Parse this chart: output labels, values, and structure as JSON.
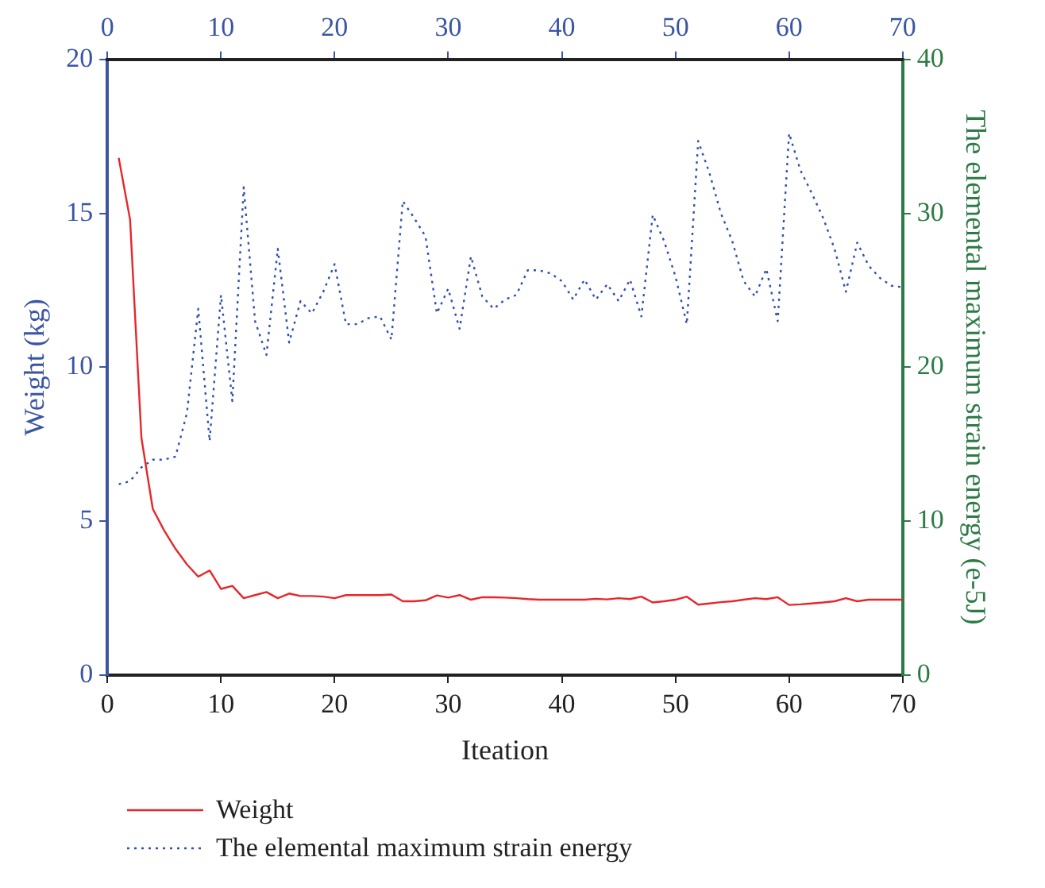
{
  "chart_data": {
    "type": "line",
    "xlabel": "Iteation",
    "ylabel": "Weight (kg)",
    "y2label": "The elemental maximum strain energy (e-5J)",
    "x": [
      1,
      2,
      3,
      4,
      5,
      6,
      7,
      8,
      9,
      10,
      11,
      12,
      13,
      14,
      15,
      16,
      17,
      18,
      19,
      20,
      21,
      22,
      23,
      24,
      25,
      26,
      27,
      28,
      29,
      30,
      31,
      32,
      33,
      34,
      35,
      36,
      37,
      38,
      39,
      40,
      41,
      42,
      43,
      44,
      45,
      46,
      47,
      48,
      49,
      50,
      51,
      52,
      53,
      54,
      55,
      56,
      57,
      58,
      59,
      60,
      61,
      62,
      63,
      64,
      65,
      66,
      67,
      68,
      69,
      70
    ],
    "series": [
      {
        "name": "Weight",
        "color": "#e8262a",
        "line_style": "solid",
        "values": [
          16.8,
          14.8,
          7.7,
          5.4,
          4.7,
          4.1,
          3.6,
          3.2,
          3.4,
          2.8,
          2.9,
          2.5,
          2.6,
          2.7,
          2.5,
          2.65,
          2.57,
          2.57,
          2.55,
          2.5,
          2.6,
          2.6,
          2.6,
          2.6,
          2.62,
          2.4,
          2.4,
          2.43,
          2.59,
          2.52,
          2.6,
          2.45,
          2.53,
          2.53,
          2.52,
          2.5,
          2.47,
          2.45,
          2.45,
          2.45,
          2.45,
          2.45,
          2.48,
          2.46,
          2.5,
          2.47,
          2.55,
          2.36,
          2.4,
          2.45,
          2.55,
          2.29,
          2.33,
          2.37,
          2.4,
          2.45,
          2.5,
          2.47,
          2.53,
          2.28,
          2.3,
          2.33,
          2.36,
          2.4,
          2.5,
          2.4,
          2.45,
          2.45,
          2.45,
          2.45
        ]
      },
      {
        "name": "The elemental maximum strain energy",
        "color": "#3050b0",
        "line_style": "dotted",
        "axis": "y2",
        "values": [
          12.4,
          12.6,
          13.5,
          14,
          14,
          14.2,
          17,
          23.8,
          15.2,
          24.7,
          17.8,
          31.7,
          23,
          20.8,
          27.7,
          21.6,
          24.3,
          23.5,
          24.9,
          26.7,
          22.8,
          22.8,
          23.2,
          23.3,
          21.8,
          30.8,
          29.7,
          28.5,
          23.5,
          25.1,
          22.5,
          27.2,
          24.6,
          23.8,
          24.4,
          24.7,
          26.3,
          26.3,
          26.1,
          25.6,
          24.4,
          25.7,
          24.4,
          25.4,
          24.3,
          25.7,
          23.3,
          29.9,
          28.2,
          25.9,
          22.8,
          34.7,
          32.6,
          30,
          28.2,
          25.6,
          24.6,
          26.4,
          23,
          35.2,
          32.8,
          31.3,
          29.7,
          27.7,
          24.9,
          28.1,
          26.6,
          25.8,
          25.3,
          25.2
        ]
      }
    ],
    "xlim": [
      0,
      70
    ],
    "xticks": [
      0,
      10,
      20,
      30,
      40,
      50,
      60,
      70
    ],
    "x2lim": [
      0,
      70
    ],
    "x2ticks": [
      0,
      10,
      20,
      30,
      40,
      50,
      60,
      70
    ],
    "ylim": [
      0,
      20
    ],
    "yticks": [
      0,
      5,
      10,
      15,
      20
    ],
    "y2lim": [
      0,
      40
    ],
    "y2ticks": [
      0,
      10,
      20,
      30,
      40
    ],
    "grid": false,
    "legend": "bottom",
    "marker": "none"
  }
}
